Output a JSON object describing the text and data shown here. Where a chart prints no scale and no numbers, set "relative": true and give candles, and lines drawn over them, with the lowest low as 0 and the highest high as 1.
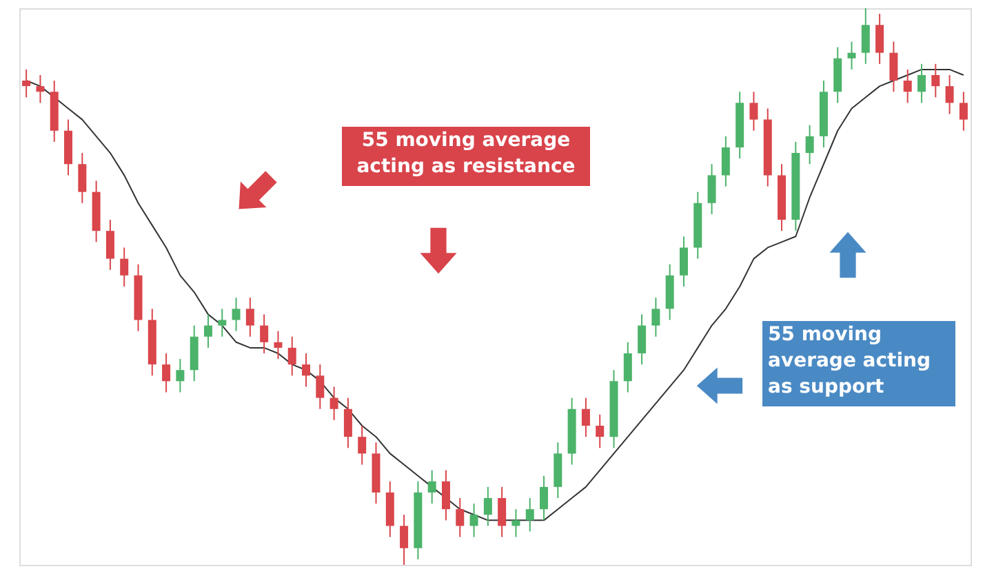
{
  "chart_data": {
    "type": "candlestick",
    "relative": true,
    "categories": [
      null,
      null,
      null,
      null,
      null,
      null,
      null,
      null,
      null,
      null,
      null,
      null,
      null,
      null,
      null,
      null,
      null,
      null,
      null,
      null,
      null,
      null,
      null,
      null,
      null,
      null,
      null,
      null,
      null,
      null,
      null,
      null,
      null,
      null,
      null,
      null,
      null,
      null,
      null,
      null,
      null,
      null,
      null,
      null,
      null,
      null,
      null,
      null,
      null,
      null,
      null,
      null,
      null,
      null,
      null,
      null,
      null,
      null,
      null,
      null,
      null,
      null,
      null,
      null,
      null,
      null,
      null,
      null
    ],
    "ohlc": [
      [
        0.87,
        0.89,
        0.84,
        0.86
      ],
      [
        0.86,
        0.88,
        0.83,
        0.85
      ],
      [
        0.85,
        0.87,
        0.76,
        0.78
      ],
      [
        0.78,
        0.8,
        0.7,
        0.72
      ],
      [
        0.72,
        0.74,
        0.65,
        0.67
      ],
      [
        0.67,
        0.69,
        0.58,
        0.6
      ],
      [
        0.6,
        0.62,
        0.53,
        0.55
      ],
      [
        0.55,
        0.57,
        0.5,
        0.52
      ],
      [
        0.52,
        0.54,
        0.42,
        0.44
      ],
      [
        0.44,
        0.46,
        0.34,
        0.36
      ],
      [
        0.36,
        0.38,
        0.31,
        0.33
      ],
      [
        0.33,
        0.37,
        0.31,
        0.35
      ],
      [
        0.35,
        0.43,
        0.33,
        0.41
      ],
      [
        0.41,
        0.45,
        0.39,
        0.43
      ],
      [
        0.43,
        0.46,
        0.41,
        0.44
      ],
      [
        0.44,
        0.48,
        0.42,
        0.46
      ],
      [
        0.46,
        0.48,
        0.41,
        0.43
      ],
      [
        0.43,
        0.45,
        0.38,
        0.4
      ],
      [
        0.4,
        0.42,
        0.37,
        0.39
      ],
      [
        0.39,
        0.41,
        0.34,
        0.36
      ],
      [
        0.36,
        0.38,
        0.32,
        0.34
      ],
      [
        0.34,
        0.36,
        0.28,
        0.3
      ],
      [
        0.3,
        0.32,
        0.26,
        0.28
      ],
      [
        0.28,
        0.3,
        0.21,
        0.23
      ],
      [
        0.23,
        0.25,
        0.18,
        0.2
      ],
      [
        0.2,
        0.22,
        0.11,
        0.13
      ],
      [
        0.13,
        0.15,
        0.05,
        0.07
      ],
      [
        0.07,
        0.09,
        0.0,
        0.03
      ],
      [
        0.03,
        0.15,
        0.01,
        0.13
      ],
      [
        0.13,
        0.17,
        0.11,
        0.15
      ],
      [
        0.15,
        0.17,
        0.08,
        0.1
      ],
      [
        0.1,
        0.12,
        0.05,
        0.07
      ],
      [
        0.07,
        0.11,
        0.05,
        0.09
      ],
      [
        0.09,
        0.14,
        0.07,
        0.12
      ],
      [
        0.12,
        0.14,
        0.05,
        0.07
      ],
      [
        0.07,
        0.1,
        0.05,
        0.08
      ],
      [
        0.08,
        0.12,
        0.06,
        0.1
      ],
      [
        0.1,
        0.16,
        0.08,
        0.14
      ],
      [
        0.14,
        0.22,
        0.12,
        0.2
      ],
      [
        0.2,
        0.3,
        0.18,
        0.28
      ],
      [
        0.28,
        0.3,
        0.23,
        0.25
      ],
      [
        0.25,
        0.27,
        0.21,
        0.23
      ],
      [
        0.23,
        0.35,
        0.21,
        0.33
      ],
      [
        0.33,
        0.4,
        0.31,
        0.38
      ],
      [
        0.38,
        0.45,
        0.36,
        0.43
      ],
      [
        0.43,
        0.48,
        0.41,
        0.46
      ],
      [
        0.46,
        0.54,
        0.44,
        0.52
      ],
      [
        0.52,
        0.59,
        0.5,
        0.57
      ],
      [
        0.57,
        0.67,
        0.55,
        0.65
      ],
      [
        0.65,
        0.72,
        0.63,
        0.7
      ],
      [
        0.7,
        0.77,
        0.68,
        0.75
      ],
      [
        0.75,
        0.85,
        0.73,
        0.83
      ],
      [
        0.83,
        0.85,
        0.78,
        0.8
      ],
      [
        0.8,
        0.82,
        0.68,
        0.7
      ],
      [
        0.7,
        0.72,
        0.6,
        0.62
      ],
      [
        0.62,
        0.76,
        0.6,
        0.74
      ],
      [
        0.74,
        0.79,
        0.72,
        0.77
      ],
      [
        0.77,
        0.87,
        0.75,
        0.85
      ],
      [
        0.85,
        0.93,
        0.83,
        0.91
      ],
      [
        0.91,
        0.94,
        0.89,
        0.92
      ],
      [
        0.92,
        1.0,
        0.9,
        0.97
      ],
      [
        0.97,
        0.99,
        0.9,
        0.92
      ],
      [
        0.92,
        0.94,
        0.85,
        0.87
      ],
      [
        0.87,
        0.89,
        0.83,
        0.85
      ],
      [
        0.85,
        0.9,
        0.83,
        0.88
      ],
      [
        0.88,
        0.9,
        0.84,
        0.86
      ],
      [
        0.86,
        0.88,
        0.81,
        0.83
      ],
      [
        0.83,
        0.85,
        0.78,
        0.8
      ]
    ],
    "series": [
      {
        "type": "line",
        "color": "#333333",
        "values": [
          0.87,
          0.86,
          0.84,
          0.82,
          0.8,
          0.77,
          0.74,
          0.7,
          0.65,
          0.61,
          0.57,
          0.52,
          0.49,
          0.45,
          0.43,
          0.4,
          0.39,
          0.39,
          0.38,
          0.36,
          0.35,
          0.33,
          0.3,
          0.28,
          0.25,
          0.23,
          0.2,
          0.18,
          0.16,
          0.14,
          0.12,
          0.1,
          0.09,
          0.08,
          0.08,
          0.08,
          0.08,
          0.08,
          0.1,
          0.12,
          0.14,
          0.17,
          0.2,
          0.23,
          0.26,
          0.29,
          0.32,
          0.35,
          0.39,
          0.43,
          0.46,
          0.5,
          0.55,
          0.57,
          0.58,
          0.59,
          0.66,
          0.72,
          0.78,
          0.82,
          0.84,
          0.86,
          0.87,
          0.88,
          0.89,
          0.89,
          0.89,
          0.88
        ]
      }
    ],
    "annotations": [
      "55 moving average\nacting as resistance",
      "55 moving\naverage acting\nas support"
    ]
  }
}
